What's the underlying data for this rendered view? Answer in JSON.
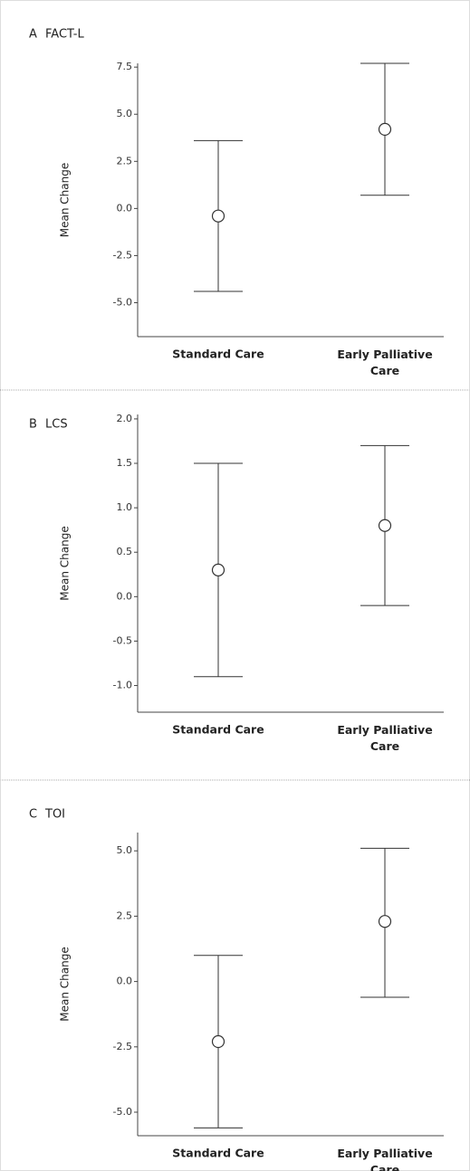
{
  "chart_data": [
    {
      "type": "errorbar",
      "panel": "A",
      "title": "FACT-L",
      "ylabel": "Mean Change",
      "categories": [
        "Standard Care",
        "Early Palliative Care"
      ],
      "values": [
        -0.4,
        4.2
      ],
      "lower": [
        -4.4,
        0.7
      ],
      "upper": [
        3.6,
        7.7
      ],
      "ylim": [
        -6.8,
        7.7
      ],
      "yticks": [
        {
          "value": -5,
          "label": "-5.0"
        },
        -2.5,
        {
          "value": 0,
          "label": "0.0"
        },
        2.5,
        {
          "value": 5,
          "label": "5.0"
        },
        7.5
      ]
    },
    {
      "type": "errorbar",
      "panel": "B",
      "title": "LCS",
      "ylabel": "Mean Change",
      "categories": [
        "Standard Care",
        "Early Palliative Care"
      ],
      "values": [
        0.3,
        0.8
      ],
      "lower": [
        -0.9,
        -0.1
      ],
      "upper": [
        1.5,
        1.7
      ],
      "ylim": [
        -1.3,
        2.05
      ],
      "yticks": [
        {
          "value": -1,
          "label": "-1.0"
        },
        -0.5,
        {
          "value": 0,
          "label": "0.0"
        },
        0.5,
        {
          "value": 1,
          "label": "1.0"
        },
        1.5,
        {
          "value": 2,
          "label": "2.0"
        }
      ]
    },
    {
      "type": "errorbar",
      "panel": "C",
      "title": "TOI",
      "ylabel": "Mean Change",
      "categories": [
        "Standard Care",
        "Early Palliative Care"
      ],
      "values": [
        -2.3,
        2.3
      ],
      "lower": [
        -5.6,
        -0.6
      ],
      "upper": [
        1.0,
        5.1
      ],
      "ylim": [
        -5.9,
        5.7
      ],
      "yticks": [
        {
          "value": -5,
          "label": "-5.0"
        },
        -2.5,
        {
          "value": 0,
          "label": "0.0"
        },
        2.5,
        {
          "value": 5,
          "label": "5.0"
        }
      ]
    }
  ]
}
